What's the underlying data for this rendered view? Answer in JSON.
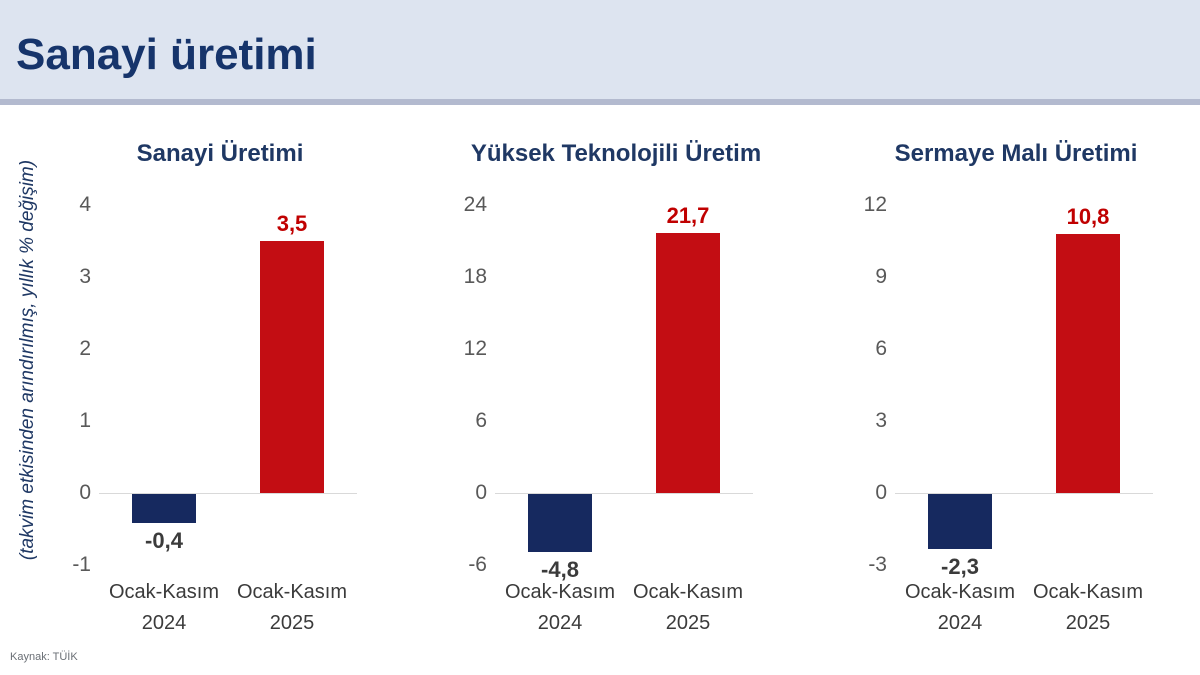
{
  "header": {
    "title": "Sanayi üretimi"
  },
  "axis_caption": "(takvim etkisinden arındırılmış, yıllık % değişim)",
  "source": "Kaynak: TÜİK",
  "colors": {
    "header_bg": "#dde4f0",
    "header_text": "#16346b",
    "chart_title_text": "#1f3864",
    "bar_negative": "#16295f",
    "bar_positive": "#c30d13",
    "label_negative": "#3b3b3b",
    "label_positive": "#c00000",
    "tick_text": "#595959",
    "axis_line": "#d9d9d9"
  },
  "chart_data": [
    {
      "type": "bar",
      "title": "Sanayi Üretimi",
      "categories": [
        "Ocak-Kasım 2024",
        "Ocak-Kasım 2025"
      ],
      "values": [
        -0.4,
        3.5
      ],
      "value_labels": [
        "-0,4",
        "3,5"
      ],
      "yticks": [
        "4",
        "3",
        "2",
        "1",
        "0",
        "-1"
      ],
      "ylim": [
        -1,
        4
      ],
      "legend": null,
      "grid": false
    },
    {
      "type": "bar",
      "title": "Yüksek Teknolojili Üretim",
      "categories": [
        "Ocak-Kasım 2024",
        "Ocak-Kasım 2025"
      ],
      "values": [
        -4.8,
        21.7
      ],
      "value_labels": [
        "-4,8",
        "21,7"
      ],
      "yticks": [
        "24",
        "18",
        "12",
        "6",
        "0",
        "-6"
      ],
      "ylim": [
        -6,
        24
      ],
      "legend": null,
      "grid": false
    },
    {
      "type": "bar",
      "title": "Sermaye Malı Üretimi",
      "categories": [
        "Ocak-Kasım 2024",
        "Ocak-Kasım 2025"
      ],
      "values": [
        -2.3,
        10.8
      ],
      "value_labels": [
        "-2,3",
        "10,8"
      ],
      "yticks": [
        "12",
        "9",
        "6",
        "3",
        "0",
        "-3"
      ],
      "ylim": [
        -3,
        12
      ],
      "legend": null,
      "grid": false
    }
  ]
}
